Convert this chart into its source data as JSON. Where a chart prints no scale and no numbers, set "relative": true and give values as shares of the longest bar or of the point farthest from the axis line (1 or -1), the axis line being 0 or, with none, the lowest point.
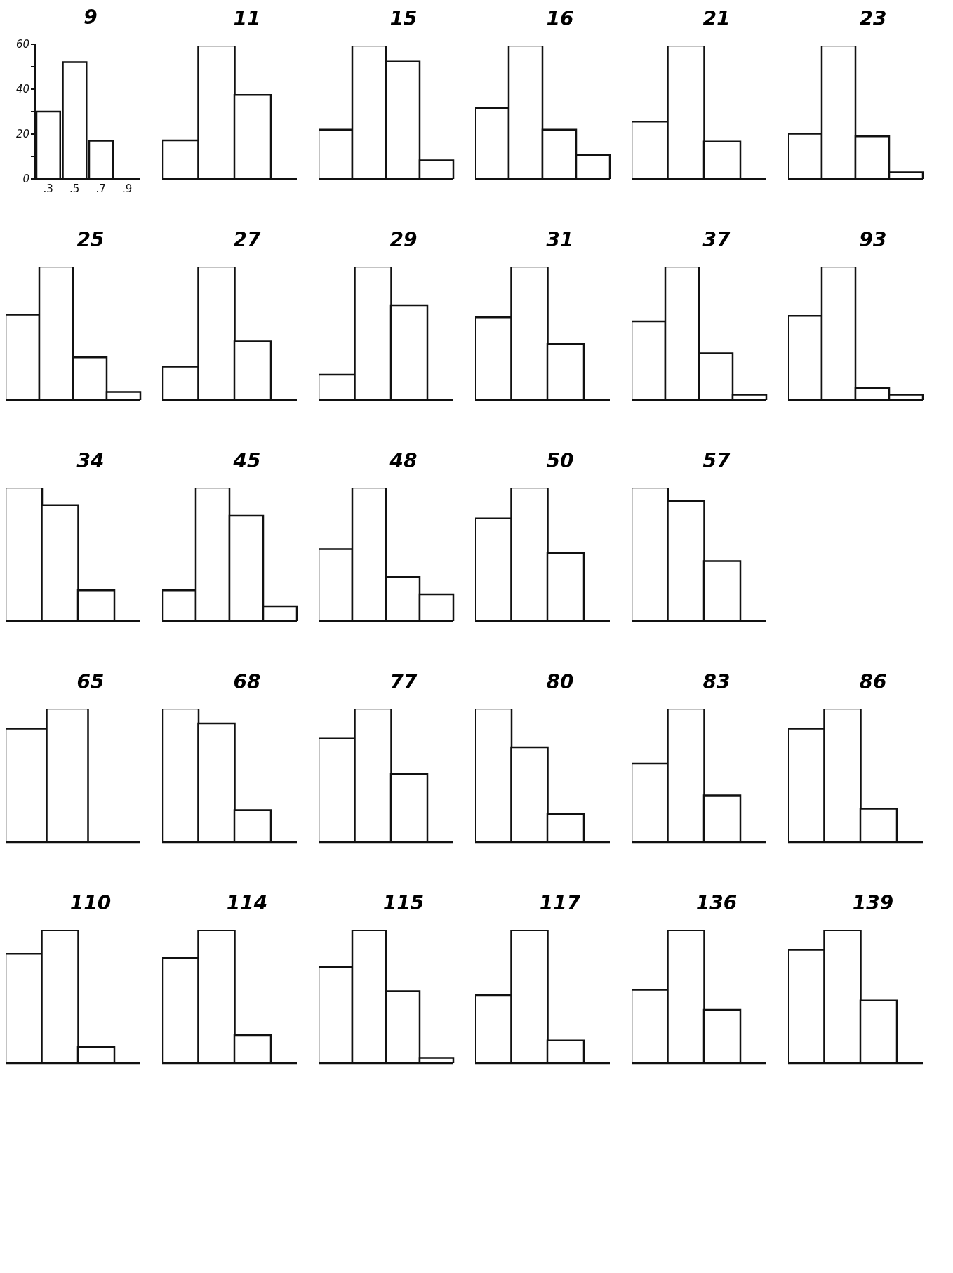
{
  "chart_data": [
    {
      "type": "histogram",
      "title": "9",
      "bins": [
        0.2,
        0.4,
        0.6,
        0.8,
        1.0
      ],
      "values": [
        30,
        52,
        17,
        0
      ],
      "color": "#ffffff",
      "xlim": [
        0.2,
        1.0
      ],
      "xticks": [
        {
          "value": 0.3,
          "label": ".3"
        },
        {
          "value": 0.5,
          "label": ".5"
        },
        {
          "value": 0.7,
          "label": ".7"
        },
        {
          "value": 0.9,
          "label": ".9"
        }
      ],
      "ylim": [
        0,
        60
      ],
      "yticks": [
        0,
        {
          "value": 10,
          "label": null
        },
        20,
        {
          "value": 30,
          "label": null
        },
        40,
        {
          "value": 50,
          "label": null
        },
        60
      ]
    },
    {
      "type": "bar",
      "title": "11",
      "categories": [
        null,
        null,
        null
      ],
      "values": [
        0.29,
        1,
        0.63
      ],
      "color": "#ffffff",
      "relative": true
    },
    {
      "type": "bar",
      "title": "15",
      "categories": [
        null,
        null,
        null,
        null
      ],
      "values": [
        0.37,
        1,
        0.88,
        0.14
      ],
      "color": "#ffffff",
      "relative": true
    },
    {
      "type": "bar",
      "title": "16",
      "categories": [
        null,
        null,
        null,
        null
      ],
      "values": [
        0.53,
        1,
        0.37,
        0.18
      ],
      "color": "#ffffff",
      "relative": true
    },
    {
      "type": "bar",
      "title": "21",
      "categories": [
        null,
        null,
        null
      ],
      "values": [
        0.43,
        1,
        0.28
      ],
      "color": "#ffffff",
      "relative": true
    },
    {
      "type": "bar",
      "title": "23",
      "categories": [
        null,
        null,
        null,
        null
      ],
      "values": [
        0.34,
        1,
        0.32,
        0.05
      ],
      "color": "#ffffff",
      "relative": true
    },
    {
      "type": "bar",
      "title": "25",
      "categories": [
        null,
        null,
        null,
        null
      ],
      "values": [
        0.64,
        1,
        0.32,
        0.06
      ],
      "color": "#ffffff",
      "relative": true
    },
    {
      "type": "bar",
      "title": "27",
      "categories": [
        null,
        null,
        null
      ],
      "values": [
        0.25,
        1,
        0.44
      ],
      "color": "#ffffff",
      "relative": true
    },
    {
      "type": "bar",
      "title": "29",
      "categories": [
        null,
        null,
        null
      ],
      "values": [
        0.19,
        1,
        0.71
      ],
      "color": "#ffffff",
      "relative": true
    },
    {
      "type": "bar",
      "title": "31",
      "categories": [
        null,
        null,
        null
      ],
      "values": [
        0.62,
        1,
        0.42
      ],
      "color": "#ffffff",
      "relative": true
    },
    {
      "type": "bar",
      "title": "37",
      "categories": [
        null,
        null,
        null,
        null
      ],
      "values": [
        0.59,
        1,
        0.35,
        0.04
      ],
      "color": "#ffffff",
      "relative": true
    },
    {
      "type": "bar",
      "title": "93",
      "categories": [
        null,
        null,
        null,
        null
      ],
      "values": [
        0.63,
        1,
        0.09,
        0.04
      ],
      "color": "#ffffff",
      "relative": true
    },
    {
      "type": "bar",
      "title": "34",
      "categories": [
        null,
        null,
        null
      ],
      "values": [
        1,
        0.87,
        0.23
      ],
      "color": "#ffffff",
      "relative": true
    },
    {
      "type": "bar",
      "title": "45",
      "categories": [
        null,
        null,
        null,
        null
      ],
      "values": [
        0.23,
        1,
        0.79,
        0.11
      ],
      "color": "#ffffff",
      "relative": true
    },
    {
      "type": "bar",
      "title": "48",
      "categories": [
        null,
        null,
        null,
        null
      ],
      "values": [
        0.54,
        1,
        0.33,
        0.2
      ],
      "color": "#ffffff",
      "relative": true
    },
    {
      "type": "bar",
      "title": "50",
      "categories": [
        null,
        null,
        null
      ],
      "values": [
        0.77,
        1,
        0.51
      ],
      "color": "#ffffff",
      "relative": true
    },
    {
      "type": "bar",
      "title": "57",
      "categories": [
        null,
        null,
        null
      ],
      "values": [
        1,
        0.9,
        0.45
      ],
      "color": "#ffffff",
      "relative": true
    },
    {
      "type": "bar",
      "title": "65",
      "categories": [
        null,
        null
      ],
      "values": [
        0.85,
        1
      ],
      "color": "#ffffff",
      "relative": true
    },
    {
      "type": "bar",
      "title": "68",
      "categories": [
        null,
        null,
        null
      ],
      "values": [
        1,
        0.89,
        0.24
      ],
      "color": "#ffffff",
      "relative": true
    },
    {
      "type": "bar",
      "title": "77",
      "categories": [
        null,
        null,
        null
      ],
      "values": [
        0.78,
        1,
        0.51
      ],
      "color": "#ffffff",
      "relative": true
    },
    {
      "type": "bar",
      "title": "80",
      "categories": [
        null,
        null,
        null
      ],
      "values": [
        1,
        0.71,
        0.21
      ],
      "color": "#ffffff",
      "relative": true
    },
    {
      "type": "bar",
      "title": "83",
      "categories": [
        null,
        null,
        null
      ],
      "values": [
        0.59,
        1,
        0.35
      ],
      "color": "#ffffff",
      "relative": true
    },
    {
      "type": "bar",
      "title": "86",
      "categories": [
        null,
        null,
        null
      ],
      "values": [
        0.85,
        1,
        0.25
      ],
      "color": "#ffffff",
      "relative": true
    },
    {
      "type": "bar",
      "title": "110",
      "categories": [
        null,
        null,
        null
      ],
      "values": [
        0.82,
        1,
        0.12
      ],
      "color": "#ffffff",
      "relative": true
    },
    {
      "type": "bar",
      "title": "114",
      "categories": [
        null,
        null,
        null
      ],
      "values": [
        0.79,
        1,
        0.21
      ],
      "color": "#ffffff",
      "relative": true
    },
    {
      "type": "bar",
      "title": "115",
      "categories": [
        null,
        null,
        null,
        null
      ],
      "values": [
        0.72,
        1,
        0.54,
        0.04
      ],
      "color": "#ffffff",
      "relative": true
    },
    {
      "type": "bar",
      "title": "117",
      "categories": [
        null,
        null,
        null
      ],
      "values": [
        0.51,
        1,
        0.17
      ],
      "color": "#ffffff",
      "relative": true
    },
    {
      "type": "bar",
      "title": "136",
      "categories": [
        null,
        null,
        null
      ],
      "values": [
        0.55,
        1,
        0.4
      ],
      "color": "#ffffff",
      "relative": true
    },
    {
      "type": "bar",
      "title": "139",
      "categories": [
        null,
        null,
        null
      ],
      "values": [
        0.85,
        1,
        0.47
      ],
      "color": "#ffffff",
      "relative": true
    }
  ]
}
